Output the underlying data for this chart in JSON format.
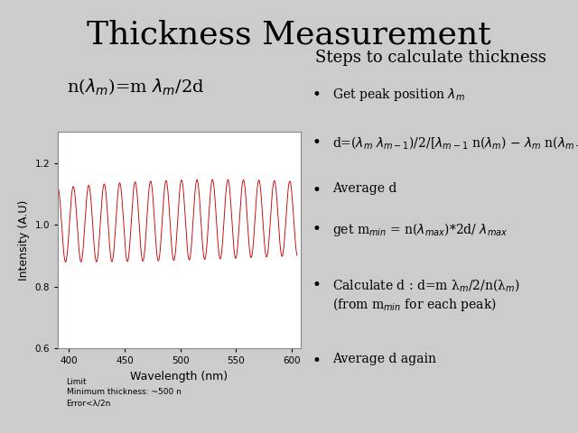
{
  "title": "Thickness Measurement",
  "title_fontsize": 26,
  "plot_xlabel": "Wavelength (nm)",
  "plot_ylabel": "Intensity (A.U)",
  "x_range": [
    390,
    608
  ],
  "y_range": [
    0.6,
    1.3
  ],
  "x_ticks": [
    400,
    450,
    500,
    550,
    600
  ],
  "y_ticks": [
    0.6,
    0.8,
    1.0,
    1.2
  ],
  "line_color": "#cc0000",
  "fig_background": "#cccccc",
  "plot_background": "#ffffff",
  "steps_header": "Steps to calculate thickness",
  "steps_header_fontsize": 13,
  "bullet_fontsize": 10,
  "footnote_fontsize": 6.5,
  "formula_fontsize": 14
}
